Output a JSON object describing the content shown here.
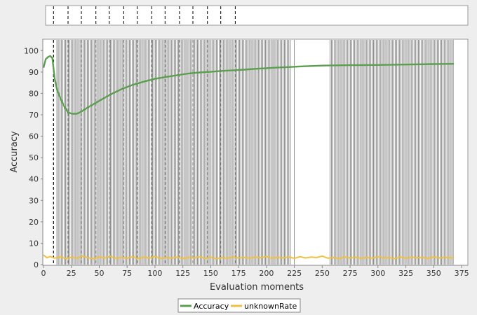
{
  "chart_data": {
    "type": "line",
    "xlabel": "Evaluation moments",
    "ylabel": "Accuracy",
    "xlim": [
      0,
      380
    ],
    "ylim": [
      0,
      105
    ],
    "xticks": [
      0,
      25,
      50,
      75,
      100,
      125,
      150,
      175,
      200,
      225,
      250,
      275,
      300,
      325,
      350,
      375
    ],
    "yticks": [
      0,
      10,
      20,
      30,
      40,
      50,
      60,
      70,
      80,
      90,
      100
    ],
    "grid": false,
    "legend_position": "bottom-center",
    "colors": {
      "accuracy": "#5c9e50",
      "unknownRate": "#f0c040",
      "event_lines": "#808080",
      "dashed_markers": "#000000"
    },
    "series": [
      {
        "name": "Accuracy",
        "points": [
          [
            0,
            92
          ],
          [
            2,
            96
          ],
          [
            4,
            97
          ],
          [
            6,
            97.5
          ],
          [
            8,
            96.5
          ],
          [
            10,
            87
          ],
          [
            12,
            82
          ],
          [
            15,
            78
          ],
          [
            18,
            74.5
          ],
          [
            22,
            71
          ],
          [
            26,
            70.5
          ],
          [
            30,
            70.5
          ],
          [
            34,
            71.5
          ],
          [
            40,
            73.5
          ],
          [
            50,
            76.5
          ],
          [
            60,
            79.5
          ],
          [
            70,
            82
          ],
          [
            80,
            84
          ],
          [
            90,
            85.5
          ],
          [
            100,
            86.8
          ],
          [
            110,
            87.7
          ],
          [
            120,
            88.5
          ],
          [
            130,
            89.3
          ],
          [
            140,
            89.8
          ],
          [
            150,
            90.1
          ],
          [
            160,
            90.5
          ],
          [
            170,
            90.8
          ],
          [
            180,
            91.1
          ],
          [
            190,
            91.5
          ],
          [
            200,
            91.8
          ],
          [
            210,
            92.1
          ],
          [
            220,
            92.3
          ],
          [
            230,
            92.6
          ],
          [
            240,
            92.8
          ],
          [
            250,
            93.0
          ],
          [
            260,
            93.1
          ],
          [
            275,
            93.2
          ],
          [
            300,
            93.3
          ],
          [
            325,
            93.5
          ],
          [
            350,
            93.7
          ],
          [
            368,
            93.8
          ]
        ]
      },
      {
        "name": "unknownRate",
        "points": [
          [
            0,
            4.5
          ],
          [
            3,
            3.2
          ],
          [
            6,
            3.8
          ],
          [
            10,
            3.0
          ],
          [
            15,
            3.6
          ],
          [
            20,
            2.8
          ],
          [
            25,
            3.5
          ],
          [
            30,
            3.0
          ],
          [
            35,
            4.0
          ],
          [
            40,
            3.2
          ],
          [
            45,
            2.7
          ],
          [
            50,
            3.6
          ],
          [
            55,
            3.1
          ],
          [
            60,
            3.9
          ],
          [
            65,
            2.9
          ],
          [
            70,
            3.4
          ],
          [
            75,
            3.0
          ],
          [
            80,
            3.7
          ],
          [
            85,
            2.8
          ],
          [
            90,
            3.5
          ],
          [
            95,
            3.1
          ],
          [
            100,
            3.8
          ],
          [
            105,
            2.9
          ],
          [
            110,
            3.3
          ],
          [
            115,
            3.0
          ],
          [
            120,
            3.6
          ],
          [
            125,
            2.8
          ],
          [
            130,
            3.4
          ],
          [
            135,
            3.1
          ],
          [
            140,
            3.7
          ],
          [
            145,
            2.9
          ],
          [
            150,
            3.5
          ],
          [
            155,
            2.7
          ],
          [
            160,
            3.3
          ],
          [
            165,
            3.0
          ],
          [
            170,
            3.6
          ],
          [
            175,
            3.1
          ],
          [
            180,
            3.4
          ],
          [
            185,
            3.0
          ],
          [
            190,
            3.5
          ],
          [
            195,
            3.2
          ],
          [
            200,
            3.8
          ],
          [
            205,
            3.0
          ],
          [
            210,
            3.4
          ],
          [
            215,
            3.1
          ],
          [
            220,
            3.6
          ],
          [
            225,
            2.9
          ],
          [
            230,
            3.7
          ],
          [
            235,
            3.1
          ],
          [
            240,
            3.5
          ],
          [
            245,
            3.3
          ],
          [
            250,
            4.0
          ],
          [
            255,
            3.0
          ],
          [
            260,
            3.3
          ],
          [
            265,
            2.8
          ],
          [
            270,
            3.6
          ],
          [
            275,
            3.1
          ],
          [
            280,
            3.5
          ],
          [
            285,
            2.9
          ],
          [
            290,
            3.4
          ],
          [
            295,
            3.0
          ],
          [
            300,
            3.7
          ],
          [
            305,
            3.1
          ],
          [
            310,
            3.3
          ],
          [
            315,
            2.8
          ],
          [
            320,
            3.6
          ],
          [
            325,
            3.0
          ],
          [
            330,
            3.5
          ],
          [
            335,
            3.2
          ],
          [
            340,
            3.4
          ],
          [
            345,
            2.9
          ],
          [
            350,
            3.6
          ],
          [
            355,
            3.1
          ],
          [
            360,
            3.4
          ],
          [
            365,
            3.2
          ],
          [
            368,
            3.3
          ]
        ]
      }
    ],
    "event_regions": [
      [
        12,
        222
      ],
      [
        257,
        368
      ]
    ],
    "event_lines_extra": [
      225
    ],
    "dashed_markers": [
      9,
      22,
      34,
      47,
      59,
      72,
      84,
      97,
      109,
      122,
      134,
      147,
      159,
      172
    ]
  },
  "legend": {
    "accuracy_label": "Accuracy",
    "unknown_label": "unknownRate"
  }
}
